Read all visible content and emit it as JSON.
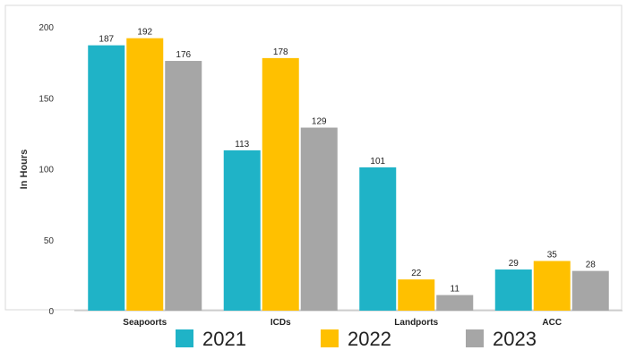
{
  "chart_data": {
    "type": "bar",
    "title": "",
    "xlabel": "",
    "ylabel": "In Hours",
    "categories": [
      "Seapoorts",
      "ICDs",
      "Landports",
      "ACC"
    ],
    "series": [
      {
        "name": "2021",
        "color": "#1fb3c7",
        "values": [
          187,
          113,
          101,
          29
        ]
      },
      {
        "name": "2022",
        "color": "#ffc000",
        "values": [
          192,
          178,
          22,
          35
        ]
      },
      {
        "name": "2023",
        "color": "#a6a6a6",
        "values": [
          176,
          129,
          11,
          28
        ]
      }
    ],
    "ylim": [
      0,
      200
    ],
    "yticks": [
      0,
      50,
      100,
      150,
      200
    ],
    "grid": false,
    "legend_position": "bottom",
    "data_labels": true
  }
}
